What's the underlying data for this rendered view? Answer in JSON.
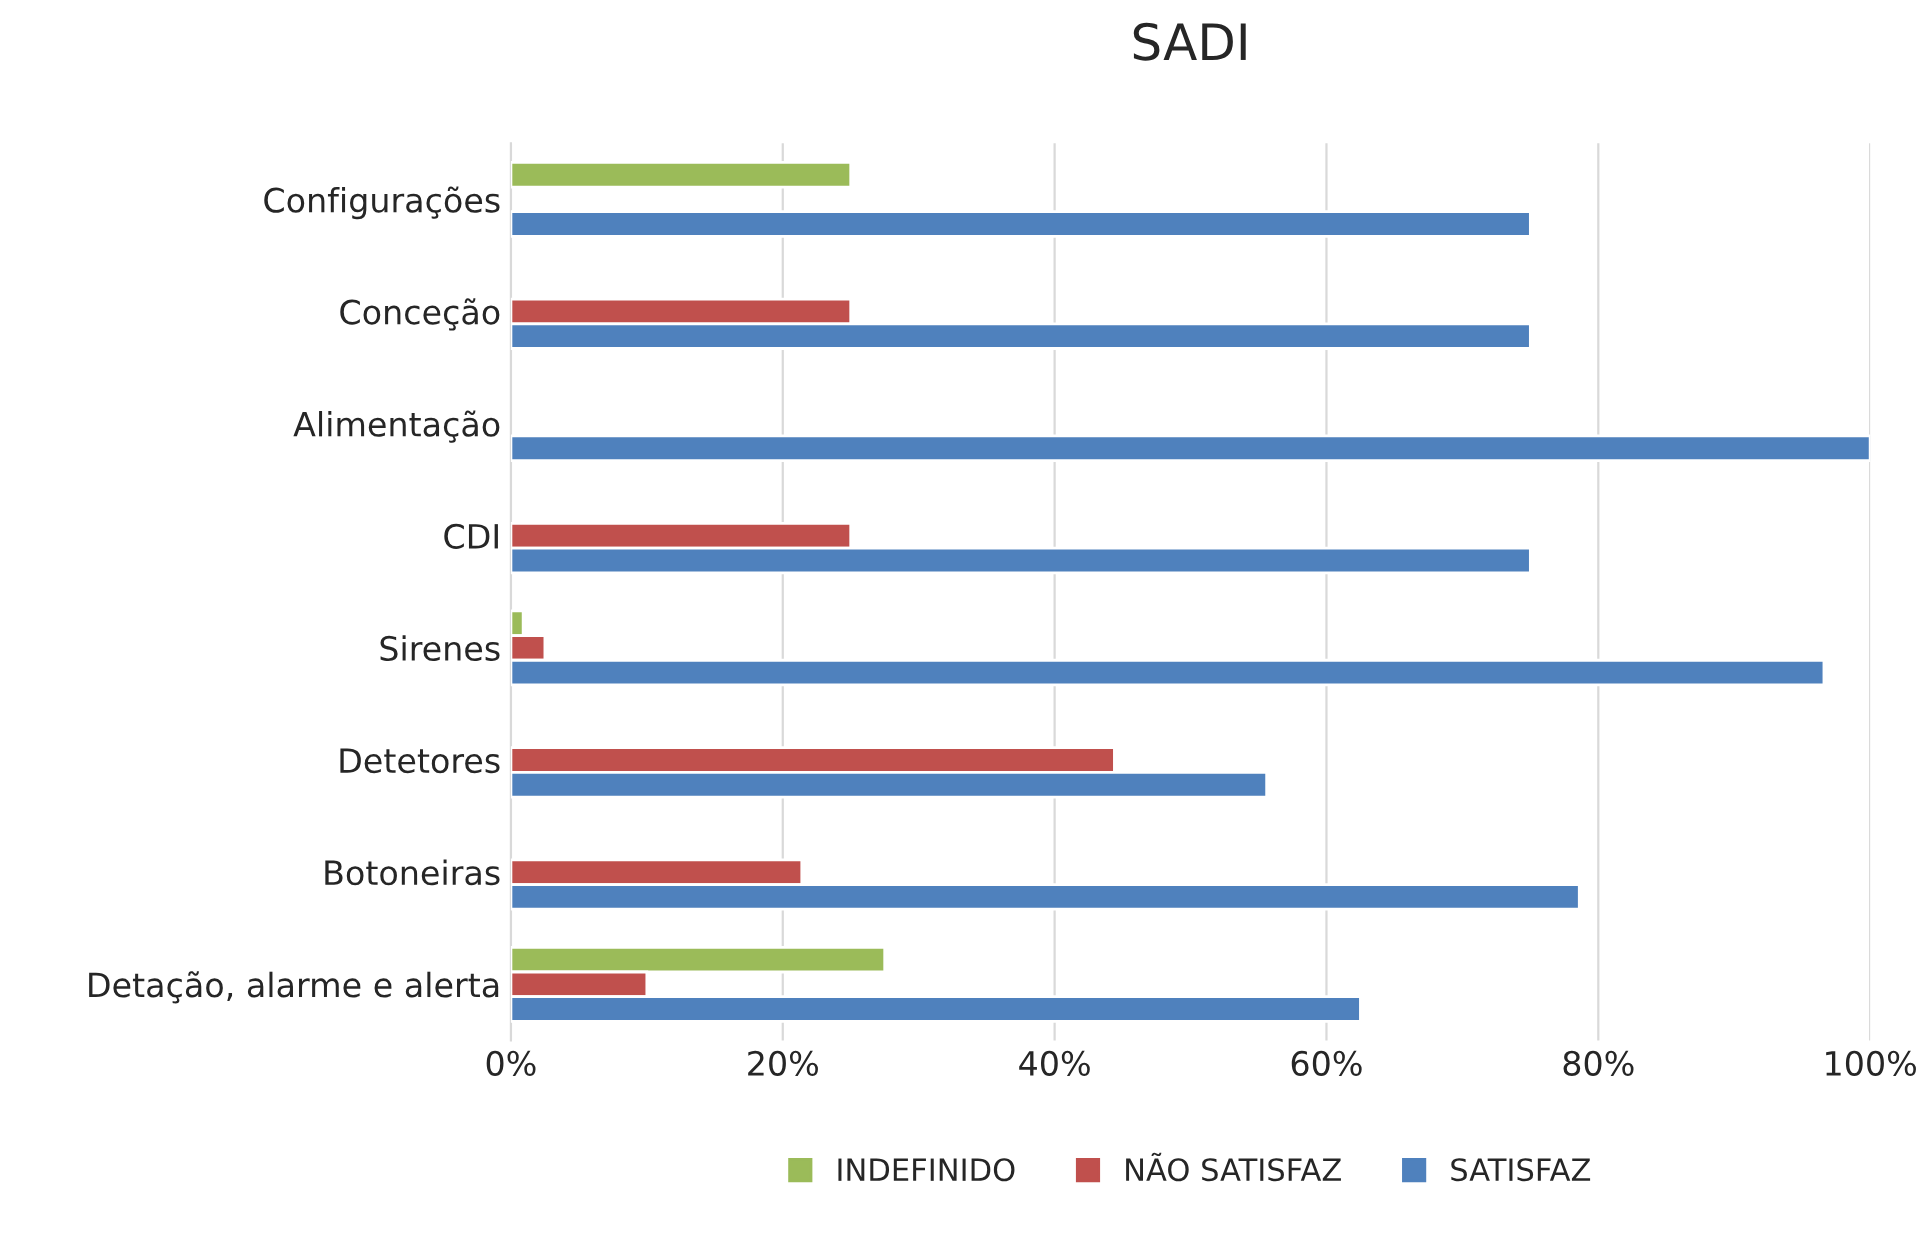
{
  "chart_data": {
    "type": "bar",
    "title": "SADI",
    "orientation": "horizontal",
    "categories": [
      "Configurações",
      "Conceção",
      "Alimentação",
      "CDI",
      "Sirenes",
      "Detetores",
      "Botoneiras",
      "Detação, alarme e alerta"
    ],
    "series": [
      {
        "name": "INDEFINIDO",
        "color": "#9bbb59",
        "values": [
          25,
          null,
          null,
          null,
          0.9,
          null,
          null,
          27.5
        ]
      },
      {
        "name": "NÃO SATISFAZ",
        "color": "#c0504d",
        "values": [
          null,
          25,
          null,
          25,
          2.5,
          44.4,
          21.4,
          10
        ]
      },
      {
        "name": "SATISFAZ",
        "color": "#4f81bd",
        "values": [
          75,
          75,
          100,
          75,
          96.6,
          55.6,
          78.6,
          62.5
        ]
      }
    ],
    "xlim": [
      0,
      100
    ],
    "xticks": [
      {
        "value": 0,
        "label": "0%"
      },
      {
        "value": 20,
        "label": "20%"
      },
      {
        "value": 40,
        "label": "40%"
      },
      {
        "value": 60,
        "label": "60%"
      },
      {
        "value": 80,
        "label": "80%"
      },
      {
        "value": 100,
        "label": "100%"
      }
    ],
    "grid": "x",
    "legend": "bottom"
  }
}
